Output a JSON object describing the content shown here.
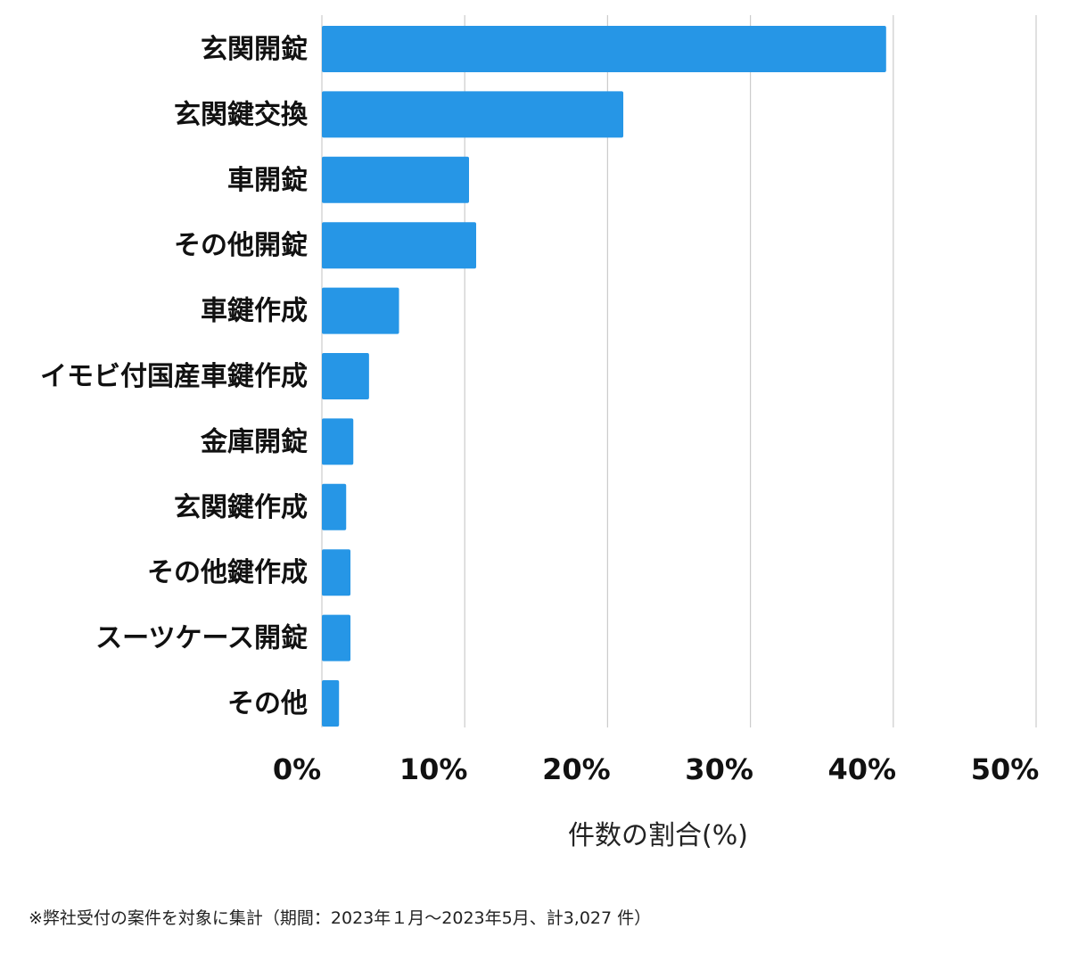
{
  "chart_data": {
    "type": "bar",
    "orientation": "horizontal",
    "categories": [
      "玄関開錠",
      "玄関鍵交換",
      "車開錠",
      "その他開錠",
      "車鍵作成",
      "イモビ付国産車鍵作成",
      "金庫開錠",
      "玄関鍵作成",
      "その他鍵作成",
      "スーツケース開錠",
      "その他"
    ],
    "values": [
      39.5,
      21.1,
      10.3,
      10.8,
      5.4,
      3.3,
      2.2,
      1.7,
      2.0,
      2.0,
      1.2
    ],
    "xlim": [
      0,
      50
    ],
    "xticks": [
      0,
      10,
      20,
      30,
      40,
      50
    ],
    "tick_labels": [
      "0%",
      "10%",
      "20%",
      "30%",
      "40%",
      "50%"
    ],
    "xlabel": "件数の割合(%)",
    "ylabel": "",
    "title": "",
    "grid": true,
    "bar_color": "#2696e6"
  },
  "footnote": "※弊社受付の案件を対象に集計（期間：2023年１月〜2023年5月、計3,027 件）"
}
